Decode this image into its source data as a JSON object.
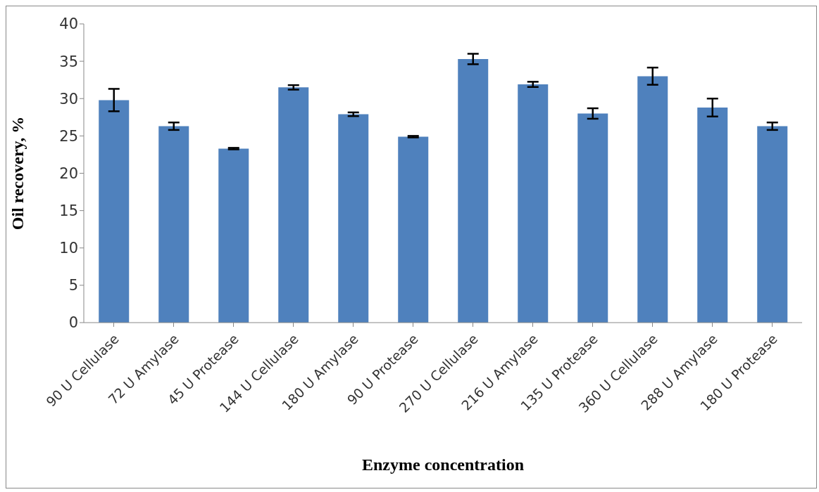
{
  "chart_data": {
    "type": "bar",
    "xlabel": "Enzyme concentration",
    "ylabel": "Oil recovery, %",
    "categories": [
      "90 U Cellulase",
      "72 U Amylase",
      "45 U Protease",
      "144 U Cellulase",
      "180 U Amylase",
      "90 U Protease",
      "270 U Cellulase",
      "216 U Amylase",
      "135 U Protease",
      "360 U Cellulase",
      "288 U Amylase",
      "180 U Protease"
    ],
    "values": [
      29.8,
      26.3,
      23.3,
      31.5,
      27.9,
      24.9,
      35.3,
      31.9,
      28.0,
      33.0,
      28.8,
      26.3
    ],
    "errors": [
      1.5,
      0.5,
      0.1,
      0.3,
      0.25,
      0.1,
      0.7,
      0.35,
      0.7,
      1.15,
      1.2,
      0.5
    ],
    "color": "#4f81bd",
    "ylim": [
      0,
      40
    ],
    "yticks": [
      0,
      5,
      10,
      15,
      20,
      25,
      30,
      35,
      40
    ],
    "grid": false,
    "legend": false
  }
}
